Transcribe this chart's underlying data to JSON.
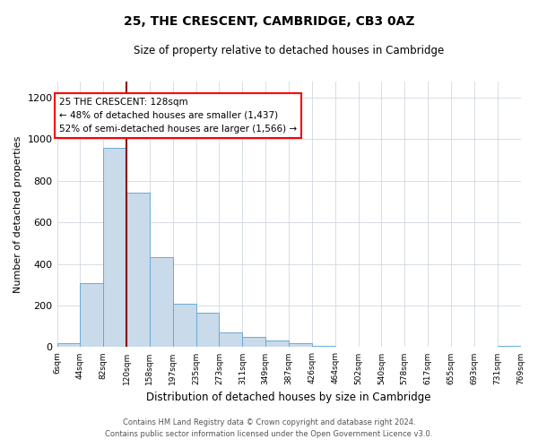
{
  "title": "25, THE CRESCENT, CAMBRIDGE, CB3 0AZ",
  "subtitle": "Size of property relative to detached houses in Cambridge",
  "xlabel": "Distribution of detached houses by size in Cambridge",
  "ylabel": "Number of detached properties",
  "bar_color": "#c9daea",
  "bar_edge_color": "#6aaad4",
  "bin_labels": [
    "6sqm",
    "44sqm",
    "82sqm",
    "120sqm",
    "158sqm",
    "197sqm",
    "235sqm",
    "273sqm",
    "311sqm",
    "349sqm",
    "387sqm",
    "426sqm",
    "464sqm",
    "502sqm",
    "540sqm",
    "578sqm",
    "617sqm",
    "655sqm",
    "693sqm",
    "731sqm",
    "769sqm"
  ],
  "bar_heights": [
    20,
    310,
    960,
    745,
    435,
    210,
    165,
    70,
    48,
    32,
    18,
    8,
    0,
    0,
    0,
    0,
    0,
    0,
    0,
    8,
    0
  ],
  "property_line_x": 3,
  "annotation_text": "25 THE CRESCENT: 128sqm\n← 48% of detached houses are smaller (1,437)\n52% of semi-detached houses are larger (1,566) →",
  "annotation_box_color": "white",
  "annotation_box_edge_color": "red",
  "vline_color": "#8b0000",
  "ylim": [
    0,
    1280
  ],
  "yticks": [
    0,
    200,
    400,
    600,
    800,
    1000,
    1200
  ],
  "footer_line1": "Contains HM Land Registry data © Crown copyright and database right 2024.",
  "footer_line2": "Contains public sector information licensed under the Open Government Licence v3.0."
}
